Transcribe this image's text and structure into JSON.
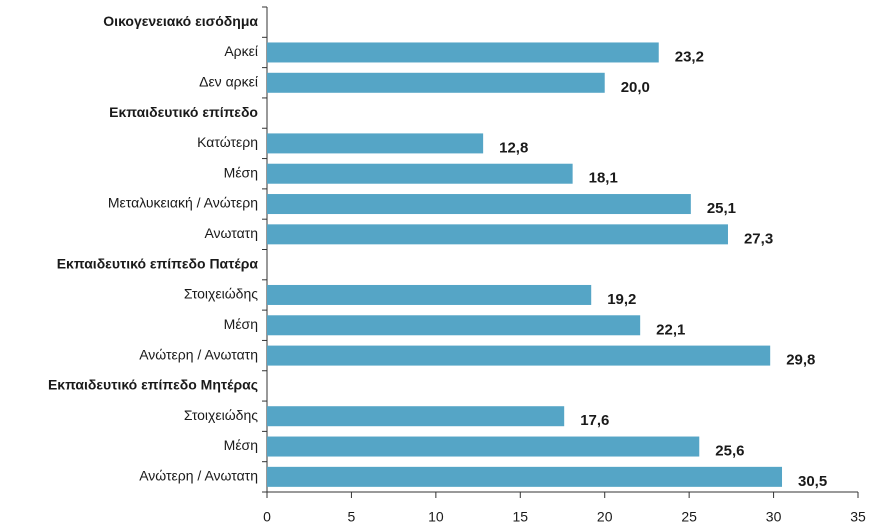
{
  "chart_data": {
    "type": "bar",
    "orientation": "horizontal",
    "color": "#55a5c6",
    "xlim": [
      0,
      35
    ],
    "xticks": [
      0,
      5,
      10,
      15,
      20,
      25,
      30,
      35
    ],
    "groups": [
      {
        "name": "Οικογενειακό εισόδημα",
        "categories": [
          "Αρκεί",
          "Δεν αρκεί"
        ],
        "values": [
          23.2,
          20.0
        ],
        "value_labels": [
          "23,2",
          "20,0"
        ]
      },
      {
        "name": "Εκπαιδευτικό επίπεδο",
        "categories": [
          "Κατώτερη",
          "Μέση",
          "Μεταλυκειακή / Ανώτερη",
          "Ανωτατη"
        ],
        "values": [
          12.8,
          18.1,
          25.1,
          27.3
        ],
        "value_labels": [
          "12,8",
          "18,1",
          "25,1",
          "27,3"
        ]
      },
      {
        "name": "Εκπαιδευτικό επίπεδο Πατέρα",
        "categories": [
          "Στοιχειώδης",
          "Μέση",
          "Ανώτερη / Ανωτατη"
        ],
        "values": [
          19.2,
          22.1,
          29.8
        ],
        "value_labels": [
          "19,2",
          "22,1",
          "29,8"
        ]
      },
      {
        "name": "Εκπαιδευτικό επίπεδο Μητέρας",
        "categories": [
          "Στοιχειώδης",
          "Μέση",
          "Ανώτερη / Ανωτατη"
        ],
        "values": [
          17.6,
          25.6,
          30.5
        ],
        "value_labels": [
          "17,6",
          "25,6",
          "30,5"
        ]
      }
    ]
  }
}
